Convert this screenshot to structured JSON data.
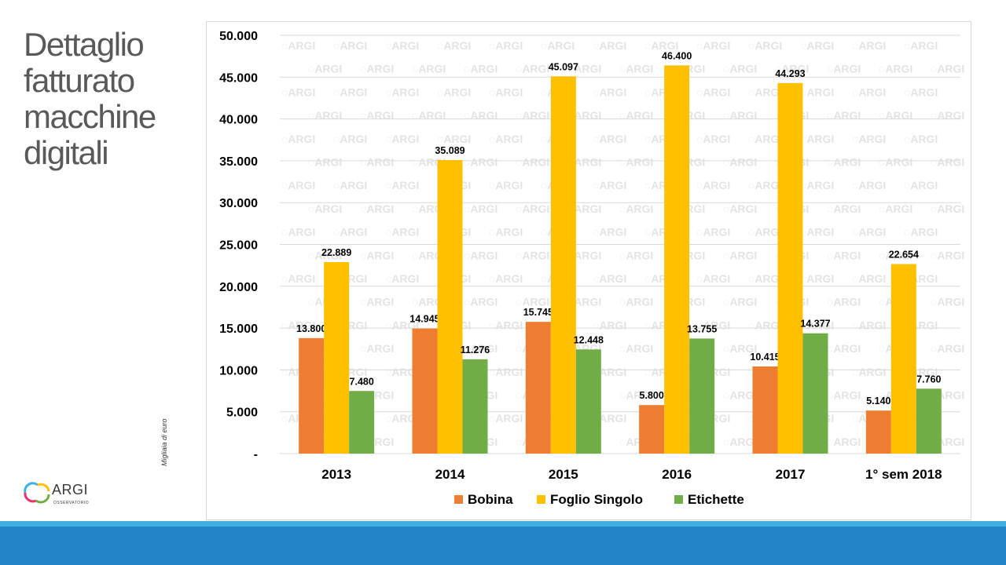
{
  "slide": {
    "title": "Dettaglio\nfatturato\nmacchine\ndigitali",
    "unit_label": "Migliaia di euro",
    "logo": {
      "text": "ARGI",
      "subtext": "OSSERVATORIO"
    },
    "watermark_text": "ARGI",
    "colors": {
      "band_top": "#3fb0e0",
      "band_bottom": "#2385c7",
      "title": "#595959"
    }
  },
  "chart_data": {
    "type": "bar",
    "categories": [
      "2013",
      "2014",
      "2015",
      "2016",
      "2017",
      "1° sem 2018"
    ],
    "series": [
      {
        "name": "Bobina",
        "color": "#ed7d31",
        "values": [
          13800,
          14945,
          15745,
          5800,
          10415,
          5140
        ],
        "labels": [
          "13.800",
          "14.945",
          "15.745",
          "5.800",
          "10.415",
          "5.140"
        ]
      },
      {
        "name": "Foglio Singolo",
        "color": "#ffc000",
        "values": [
          22889,
          35089,
          45097,
          46400,
          44293,
          22654
        ],
        "labels": [
          "22.889",
          "35.089",
          "45.097",
          "46.400",
          "44.293",
          "22.654"
        ]
      },
      {
        "name": "Etichette",
        "color": "#70ad47",
        "values": [
          7480,
          11276,
          12448,
          13755,
          14377,
          7760
        ],
        "labels": [
          "7.480",
          "11.276",
          "12.448",
          "13.755",
          "14.377",
          "7.760"
        ]
      }
    ],
    "ylim": [
      0,
      50000
    ],
    "yticks": [
      0,
      5000,
      10000,
      15000,
      20000,
      25000,
      30000,
      35000,
      40000,
      45000,
      50000
    ],
    "ytick_labels": [
      "-",
      "5.000",
      "10.000",
      "15.000",
      "20.000",
      "25.000",
      "30.000",
      "35.000",
      "40.000",
      "45.000",
      "50.000"
    ],
    "grid": true,
    "legend": "bottom"
  }
}
